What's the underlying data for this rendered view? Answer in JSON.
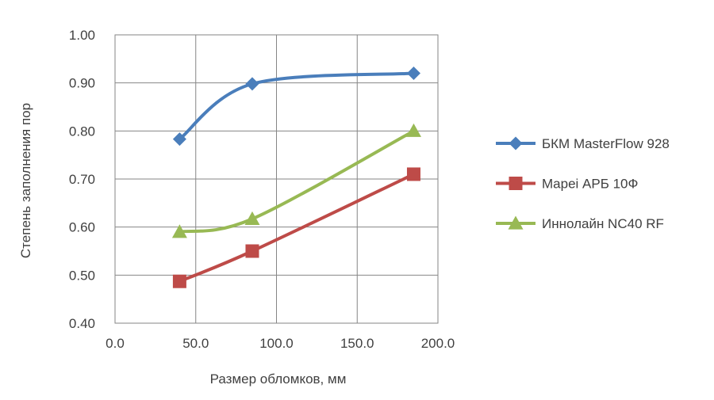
{
  "chart_data": {
    "type": "scatter",
    "title": "",
    "xlabel": "Размер обломков, мм",
    "ylabel": "Степень заполнения пор",
    "xlim": [
      0,
      200
    ],
    "ylim": [
      0.4,
      1.0
    ],
    "xticks": [
      0,
      50,
      100,
      150,
      200
    ],
    "yticks": [
      0.4,
      0.5,
      0.6,
      0.7,
      0.8,
      0.9,
      1.0
    ],
    "xtick_labels": [
      "0.0",
      "50.0",
      "100.0",
      "150.0",
      "200.0"
    ],
    "ytick_labels": [
      "0.40",
      "0.50",
      "0.60",
      "0.70",
      "0.80",
      "0.90",
      "1.00"
    ],
    "grid": true,
    "legend_position": "right",
    "smooth_lines": true,
    "series": [
      {
        "name": "БКМ MasterFlow 928",
        "color": "#4A7EBB",
        "marker": "diamond",
        "x": [
          40,
          85,
          185
        ],
        "y": [
          0.783,
          0.898,
          0.92
        ]
      },
      {
        "name": "Mapei АРБ 10Ф",
        "color": "#BE4B48",
        "marker": "square",
        "x": [
          40,
          85,
          185
        ],
        "y": [
          0.487,
          0.55,
          0.71
        ]
      },
      {
        "name": "Иннолайн NC40 RF",
        "color": "#98B954",
        "marker": "triangle",
        "x": [
          40,
          85,
          185
        ],
        "y": [
          0.59,
          0.617,
          0.8
        ]
      }
    ]
  }
}
